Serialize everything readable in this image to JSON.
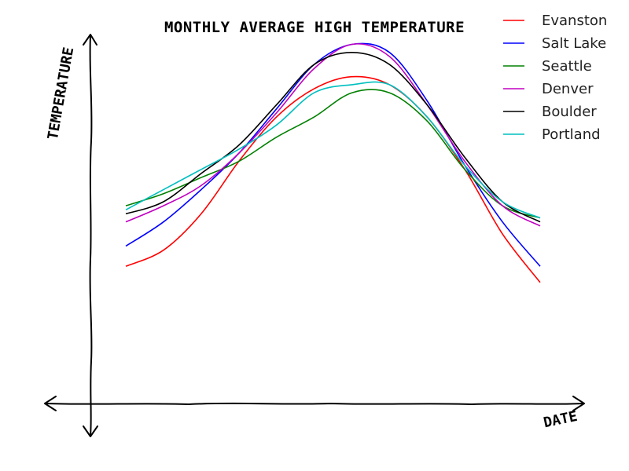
{
  "chart_data": {
    "type": "line",
    "title": "MONTHLY AVERAGE HIGH TEMPERATURE",
    "xlabel": "DATE",
    "ylabel": "TEMPERATURE",
    "grid": false,
    "legend_position": "top-right",
    "x": [
      1,
      2,
      3,
      4,
      5,
      6,
      7,
      8,
      9,
      10,
      11,
      12
    ],
    "ylim": [
      0,
      1
    ],
    "series": [
      {
        "name": "Evanston",
        "color": "#ff0000",
        "values": [
          0.34,
          0.38,
          0.47,
          0.6,
          0.71,
          0.78,
          0.81,
          0.79,
          0.71,
          0.58,
          0.42,
          0.3
        ]
      },
      {
        "name": "Salt Lake",
        "color": "#0000ff",
        "values": [
          0.39,
          0.45,
          0.53,
          0.62,
          0.73,
          0.84,
          0.89,
          0.87,
          0.75,
          0.59,
          0.45,
          0.34
        ]
      },
      {
        "name": "Seattle",
        "color": "#008000",
        "values": [
          0.49,
          0.52,
          0.56,
          0.6,
          0.66,
          0.71,
          0.77,
          0.77,
          0.7,
          0.58,
          0.49,
          0.46
        ]
      },
      {
        "name": "Denver",
        "color": "#c000c0",
        "values": [
          0.45,
          0.49,
          0.54,
          0.62,
          0.72,
          0.83,
          0.89,
          0.86,
          0.74,
          0.6,
          0.49,
          0.44
        ]
      },
      {
        "name": "Boulder",
        "color": "#000000",
        "values": [
          0.47,
          0.5,
          0.57,
          0.64,
          0.74,
          0.84,
          0.87,
          0.84,
          0.74,
          0.61,
          0.5,
          0.45
        ]
      },
      {
        "name": "Portland",
        "color": "#00bfbf",
        "values": [
          0.48,
          0.53,
          0.58,
          0.63,
          0.69,
          0.77,
          0.79,
          0.79,
          0.71,
          0.59,
          0.5,
          0.46
        ]
      }
    ]
  }
}
